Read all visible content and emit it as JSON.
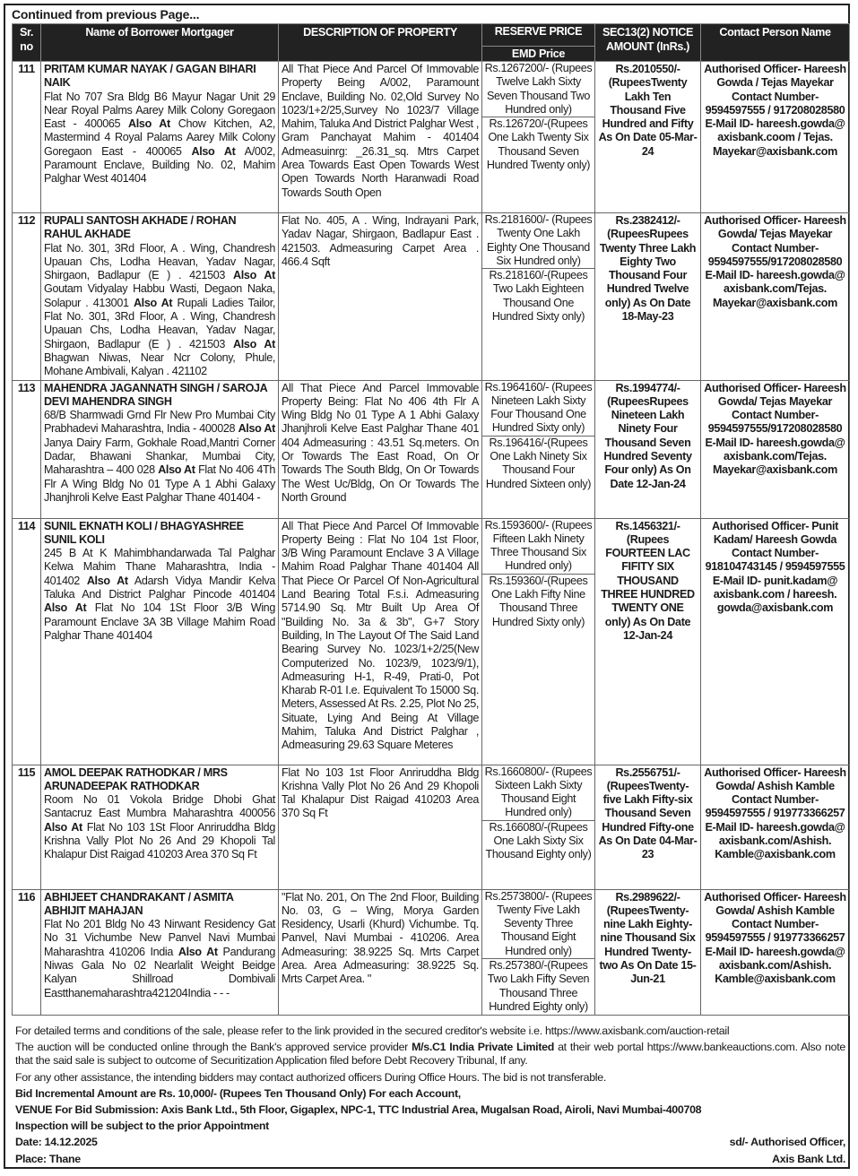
{
  "continued": "Continued from previous Page...",
  "headers": {
    "sr": "Sr. no",
    "name": "Name of Borrower Mortgager",
    "description": "DESCRIPTION OF PROPERTY",
    "reserve": "RESERVE PRICE",
    "emd": "EMD Price",
    "notice": "SEC13(2) NOTICE AMOUNT (InRs.)",
    "contact": "Contact Person Name"
  },
  "rows": [
    {
      "sr": "111",
      "names": "PRITAM KUMAR  NAYAK / GAGAN BIHARI NAIK",
      "address": [
        {
          "t": "Flat No 707 Sra Bldg B6 Mayur Nagar Unit 29 Near Royal Palms Aarey Milk Colony Goregaon East - 400065 "
        },
        {
          "t": "Also At",
          "b": true
        },
        {
          "t": " Chow Kitchen, A2, Mastermind 4 Royal Palams Aarey Milk Colony Goregaon East - 400065 "
        },
        {
          "t": "Also At",
          "b": true
        },
        {
          "t": " A/002, Paramount Enclave, Building No. 02, Mahim Palghar West  401404"
        }
      ],
      "description": "All That Piece And Parcel Of Immovable Property Being A/002, Paramount Enclave, Building No. 02,Old Survey No 1023/1+2/25,Survey No 1023/7 Village Mahim, Taluka And District Palghar West , Gram Panchayat Mahim - 401404 Admeasuinrg: _26.31_sq. Mtrs Carpet Area Towards East Open Towards West Open Towards North Haranwadi Road Towards South Open",
      "reserve": "Rs.1267200/- (Rupees Twelve Lakh Sixty Seven Thousand Two Hundred  only)",
      "emd": "Rs.126720/-(Rupees One Lakh Twenty Six Thousand Seven Hundred Twenty only)",
      "notice": "Rs.2010550/- (RupeesTwenty Lakh Ten Thousand Five Hundred and Fifty As On Date 05-Mar-24",
      "contact": "Authorised Officer- Hareesh Gowda / Tejas Mayekar Contact Number- 9594597555 / 917208028580 E-Mail ID- hareesh.gowda@ axisbank.coom / Tejas. Mayekar@axisbank.com"
    },
    {
      "sr": "112",
      "names": "RUPALI SANTOSH AKHADE / ROHAN RAHUL AKHADE",
      "address": [
        {
          "t": "Flat No. 301, 3Rd Floor, A . Wing, Chandresh Upauan Chs, Lodha Heavan, Yadav Nagar, Shirgaon, Badlapur (E ) . 421503 "
        },
        {
          "t": "Also At",
          "b": true
        },
        {
          "t": " Goutam Vidyalay Habbu Wasti, Degaon Naka, Solapur . 413001 "
        },
        {
          "t": "Also At",
          "b": true
        },
        {
          "t": " Rupali Ladies Tailor, Flat No. 301, 3Rd Floor, A . Wing, Chandresh Upauan Chs, Lodha Heavan, Yadav Nagar, Shirgaon, Badlapur (E ) . 421503 "
        },
        {
          "t": "Also At",
          "b": true
        },
        {
          "t": " Bhagwan Niwas, Near Ncr Colony, Phule, Mohane Ambivali, Kalyan . 421102"
        }
      ],
      "description": "Flat No. 405, A . Wing, Indrayani Park, Yadav Nagar, Shirgaon, Badlapur East . 421503.  Admeasuring Carpet Area . 466.4 Sqft",
      "reserve": "Rs.2181600/- (Rupees Twenty One Lakh Eighty One Thousand Six Hundred  only)",
      "emd": "Rs.218160/-(Rupees Two Lakh Eighteen Thousand One Hundred Sixty  only)",
      "notice": "Rs.2382412/- (RupeesRupees Twenty Three Lakh  Eighty Two Thousand Four Hundred Twelve only) As On Date 18-May-23",
      "contact": "Authorised Officer- Hareesh Gowda/ Tejas Mayekar Contact Number- 9594597555/917208028580 E-Mail ID- hareesh.gowda@ axisbank.com/Tejas. Mayekar@axisbank.com"
    },
    {
      "sr": "113",
      "names": "MAHENDRA JAGANNATH SINGH / SAROJA DEVI MAHENDRA SINGH",
      "address": [
        {
          "t": " 68/B Sharmwadi Grnd Flr New Pro Mumbai City Prabhadevi Maharashtra, India - 400028 "
        },
        {
          "t": "Also At",
          "b": true
        },
        {
          "t": " Janya Dairy Farm, Gokhale Road,Mantri Corner Dadar, Bhawani Shankar, Mumbai City, Maharashtra  – 400 028 "
        },
        {
          "t": "Also At",
          "b": true
        },
        {
          "t": " Flat No 406 4Th Flr A Wing Bldg No 01 Type A 1 Abhi Galaxy Jhanjhroli Kelve East Palghar Thane 401404   -"
        }
      ],
      "description": "All That Piece And Parcel Immovable Property Being: Flat No 406 4th Flr A Wing Bldg No 01 Type A 1 Abhi Galaxy Jhanjhroli Kelve East Palghar Thane 401 404 Admeasuring : 43.51 Sq.meters. On Or Towards The  East Road, On Or Towards The South Bldg, On Or Towards The West Uc/Bldg, On Or Towards The  North Ground",
      "reserve": "Rs.1964160/- (Rupees Nineteen Lakh Sixty Four Thousand One Hundred Sixty  only)",
      "emd": "Rs.196416/-(Rupees One Lakh Ninety Six Thousand Four Hundred Sixteen only)",
      "notice": "Rs.1994774/- (RupeesRupees Nineteen Lakh Ninety Four Thousand Seven Hundred Seventy Four only) As On Date 12-Jan-24",
      "contact": "Authorised Officer- Hareesh Gowda/ Tejas Mayekar Contact Number- 9594597555/917208028580 E-Mail ID- hareesh.gowda@ axisbank.com/Tejas. Mayekar@axisbank.com"
    },
    {
      "sr": "114",
      "names": "SUNIL EKNATH KOLI / BHAGYASHREE SUNIL KOLI",
      "address": [
        {
          "t": "245 B At K Mahimbhandarwada Tal Palghar Kelwa Mahim Thane Maharashtra, India - 401402 "
        },
        {
          "t": "Also At",
          "b": true
        },
        {
          "t": " Adarsh Vidya Mandir Kelva Taluka And District Palghar Pincode 401404 "
        },
        {
          "t": "Also At",
          "b": true
        },
        {
          "t": " Flat No 104 1St Floor 3/B Wing Paramount Enclave 3A 3B Village Mahim Road Palghar Thane 401404"
        }
      ],
      "description": "All That Piece And Parcel Of Immovable Property Being : Flat No 104 1st Floor, 3/B Wing Paramount Enclave 3 A Village Mahim Road Palghar Thane 401404  All That Piece Or Parcel Of Non-Agricultural Land Bearing Total F.s.i. Admeasuring 5714.90 Sq. Mtr Built Up Area Of \"Building No. 3a & 3b\", G+7 Story Building, In The Layout Of The Said Land Bearing Survey No. 1023/1+2/25(New Computerized No. 1023/9, 1023/9/1), Admeasuring H-1, R-49, Prati-0, Pot Kharab R-01 I.e. Equivalent To 15000 Sq. Meters, Assessed At Rs. 2.25,  Plot No 25, Situate, Lying And Being At Village Mahim, Taluka And District Palghar , Admeasuring 29.63 Square Meteres",
      "reserve": "Rs.1593600/- (Rupees Fifteen Lakh Ninety Three Thousand Six Hundred  only)",
      "emd": "Rs.159360/-(Rupees One Lakh Fifty Nine Thousand Three Hundred Sixty  only)",
      "notice": "Rs.1456321/- (Rupees FOURTEEN LAC FIFITY SIX THOUSAND THREE HUNDRED TWENTY ONE only) As On Date 12-Jan-24",
      "contact": "Authorised Officer- Punit Kadam/ Hareesh Gowda Contact Number- 918104743145 / 9594597555 E-Mail ID- punit.kadam@ axisbank.com / hareesh. gowda@axisbank.com"
    },
    {
      "sr": "115",
      "names": "AMOL DEEPAK RATHODKAR / MRS ARUNADEEPAK RATHODKAR",
      "address": [
        {
          "t": "Room No 01 Vokola Bridge Dhobi Ghat Santacruz East Mumbra Maharashtra 400056 "
        },
        {
          "t": "Also At",
          "b": true
        },
        {
          "t": " Flat No 103 1St Floor Anriruddha Bldg Krishna Vally Plot No 26 And 29 Khopoli Tal Khalapur Dist Raigad 410203 Area 370 Sq Ft"
        }
      ],
      "description": "Flat No 103 1st Floor Anriruddha Bldg Krishna Vally Plot No 26 And 29 Khopoli Tal Khalapur Dist Raigad 410203 Area 370 Sq Ft",
      "reserve": "Rs.1660800/- (Rupees Sixteen Lakh Sixty  Thousand Eight Hundred  only)",
      "emd": "Rs.166080/-(Rupees One Lakh Sixty Six Thousand Eighty only)",
      "notice": "Rs.2556751/- (RupeesTwenty-five Lakh Fifty-six Thousand Seven Hundred Fifty-one As On Date 04-Mar-23",
      "contact": "Authorised Officer- Hareesh Gowda/ Ashish Kamble Contact Number- 9594597555 / 919773366257 E-Mail ID- hareesh.gowda@ axisbank.com/Ashish. Kamble@axisbank.com"
    },
    {
      "sr": "116",
      "names": "ABHIJEET CHANDRAKANT / ASMITA ABHIJIT MAHAJAN",
      "address": [
        {
          "t": "Flat No  201 Bldg No 43 Nirwant Residency Gat No 31 Vichumbe New Panvel  Navi Mumbai Maharashtra 410206 India "
        },
        {
          "t": "Also At",
          "b": true
        },
        {
          "t": " Pandurang Niwas Gala No 02 Nearlalit Weight Beidge Kalyan Shillroad Dombivali Eastthanemaharashtra421204India - - -"
        }
      ],
      "description": "\"Flat No. 201, On The 2nd Floor, Building No. 03, G – Wing, Morya Garden Residency, Usarli (Khurd) Vichumbe. Tq. Panvel, Navi Mumbai - 410206. Area Admeasuring: 38.9225 Sq. Mrts Carpet Area. Area Admeasuring: 38.9225 Sq. Mrts Carpet Area.       \"",
      "reserve": "Rs.2573800/- (Rupees Twenty Five Lakh Seventy Three Thousand Eight Hundred  only)",
      "emd": "Rs.257380/-(Rupees Two Lakh Fifty Seven Thousand Three Hundred Eighty  only)",
      "notice": "Rs.2989622/- (RupeesTwenty-nine Lakh Eighty-nine Thousand Six Hundred Twenty-two As On Date 15-Jun-21",
      "contact": "Authorised Officer- Hareesh Gowda/ Ashish Kamble Contact Number- 9594597555 / 919773366257 E-Mail ID- hareesh.gowda@ axisbank.com/Ashish. Kamble@axisbank.com"
    }
  ],
  "footer": {
    "terms": "For detailed terms and conditions of the sale, please refer to the link provided in the secured creditor's website i.e. https://www.axisbank.com/auction-retail",
    "auction_pre": "The auction will be conducted online through the Bank's approved service provider ",
    "auction_provider": "M/s.C1 India Private Limited",
    "auction_post": " at their web portal https://www.bankeauctions.com. Also note that the said sale is subject to outcome of Securitization Application filed before Debt Recovery Tribunal, If any.",
    "assistance": "For any other assistance, the intending bidders may contact authorized officers During Office Hours. The bid is not transferable.",
    "bid_increment": "Bid Incremental Amount are Rs. 10,000/- (Rupees Ten Thousand Only) For each Account,",
    "venue": "VENUE For Bid Submission: Axis Bank Ltd., 5th Floor, Gigaplex, NPC-1, TTC Industrial Area, Mugalsan Road, Airoli, Navi Mumbai-400708",
    "inspection": "Inspection will be subject to the prior Appointment",
    "date": "Date: 14.12.2025",
    "signatory": "sd/- Authorised Officer,",
    "place": "Place: Thane",
    "bank": "Axis Bank Ltd."
  }
}
